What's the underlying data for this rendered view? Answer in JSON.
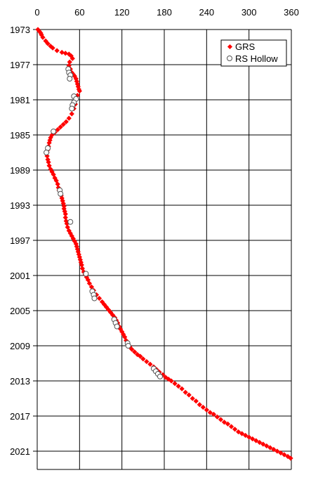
{
  "chart_data": {
    "type": "scatter",
    "title": "",
    "xlabel": "",
    "ylabel": "",
    "xlim": [
      0,
      360
    ],
    "ylim": [
      1973,
      2022
    ],
    "y_inverted": true,
    "x_axis_position": "top",
    "x_ticks": [
      0,
      60,
      120,
      180,
      240,
      300,
      360
    ],
    "y_ticks": [
      1973,
      1977,
      1981,
      1985,
      1989,
      1993,
      1997,
      2001,
      2005,
      2009,
      2013,
      2017,
      2021
    ],
    "grid": true,
    "legend_position": "top-right",
    "series": [
      {
        "name": "GRS",
        "color": "#ff0000",
        "marker": "filled-diamond",
        "data": [
          [
            1,
            1973.0
          ],
          [
            3,
            1973.2
          ],
          [
            5,
            1973.4
          ],
          [
            6,
            1973.6
          ],
          [
            8,
            1973.9
          ],
          [
            12,
            1974.3
          ],
          [
            15,
            1974.6
          ],
          [
            19,
            1974.9
          ],
          [
            22,
            1975.1
          ],
          [
            28,
            1975.4
          ],
          [
            35,
            1975.6
          ],
          [
            40,
            1975.7
          ],
          [
            45,
            1975.8
          ],
          [
            48,
            1976.0
          ],
          [
            50,
            1976.3
          ],
          [
            46,
            1976.7
          ],
          [
            45,
            1977.1
          ],
          [
            47,
            1977.5
          ],
          [
            49,
            1977.9
          ],
          [
            51,
            1978.1
          ],
          [
            53,
            1978.3
          ],
          [
            55,
            1978.6
          ],
          [
            56,
            1978.9
          ],
          [
            57,
            1979.2
          ],
          [
            58,
            1979.5
          ],
          [
            59,
            1979.8
          ],
          [
            60,
            1980.0
          ],
          [
            57,
            1980.5
          ],
          [
            55,
            1981.0
          ],
          [
            54,
            1981.5
          ],
          [
            52,
            1982.0
          ],
          [
            49,
            1982.6
          ],
          [
            45,
            1983.1
          ],
          [
            41,
            1983.5
          ],
          [
            37,
            1983.8
          ],
          [
            33,
            1984.1
          ],
          [
            29,
            1984.4
          ],
          [
            25,
            1984.7
          ],
          [
            21,
            1985.0
          ],
          [
            19,
            1985.3
          ],
          [
            18,
            1985.6
          ],
          [
            17,
            1985.9
          ],
          [
            16,
            1986.3
          ],
          [
            15,
            1986.7
          ],
          [
            14,
            1987.0
          ],
          [
            14,
            1987.4
          ],
          [
            15,
            1987.8
          ],
          [
            16,
            1988.1
          ],
          [
            17,
            1988.5
          ],
          [
            19,
            1988.9
          ],
          [
            21,
            1989.2
          ],
          [
            23,
            1989.5
          ],
          [
            25,
            1989.9
          ],
          [
            27,
            1990.2
          ],
          [
            29,
            1990.6
          ],
          [
            30,
            1991.0
          ],
          [
            31,
            1991.3
          ],
          [
            33,
            1991.6
          ],
          [
            34,
            1991.9
          ],
          [
            35,
            1992.2
          ],
          [
            36,
            1992.5
          ],
          [
            37,
            1992.8
          ],
          [
            38,
            1993.1
          ],
          [
            38,
            1993.4
          ],
          [
            39,
            1993.7
          ],
          [
            40,
            1994.0
          ],
          [
            40,
            1994.4
          ],
          [
            41,
            1994.8
          ],
          [
            42,
            1995.1
          ],
          [
            43,
            1995.5
          ],
          [
            45,
            1995.9
          ],
          [
            47,
            1996.2
          ],
          [
            49,
            1996.5
          ],
          [
            51,
            1996.8
          ],
          [
            53,
            1997.1
          ],
          [
            55,
            1997.4
          ],
          [
            56,
            1997.7
          ],
          [
            57,
            1998.0
          ],
          [
            58,
            1998.3
          ],
          [
            59,
            1998.6
          ],
          [
            60,
            1998.9
          ],
          [
            61,
            1999.2
          ],
          [
            62,
            1999.5
          ],
          [
            63,
            1999.8
          ],
          [
            64,
            2000.2
          ],
          [
            66,
            2000.6
          ],
          [
            68,
            2000.9
          ],
          [
            70,
            2001.2
          ],
          [
            72,
            2001.5
          ],
          [
            74,
            2001.9
          ],
          [
            77,
            2002.3
          ],
          [
            80,
            2002.7
          ],
          [
            84,
            2003.2
          ],
          [
            88,
            2003.6
          ],
          [
            92,
            2004.0
          ],
          [
            95,
            2004.3
          ],
          [
            98,
            2004.6
          ],
          [
            101,
            2004.9
          ],
          [
            104,
            2005.2
          ],
          [
            107,
            2005.5
          ],
          [
            110,
            2005.8
          ],
          [
            112,
            2006.1
          ],
          [
            114,
            2006.4
          ],
          [
            116,
            2006.8
          ],
          [
            118,
            2007.1
          ],
          [
            120,
            2007.4
          ],
          [
            122,
            2007.7
          ],
          [
            124,
            2008.0
          ],
          [
            126,
            2008.4
          ],
          [
            128,
            2008.8
          ],
          [
            131,
            2009.1
          ],
          [
            134,
            2009.4
          ],
          [
            138,
            2009.7
          ],
          [
            142,
            2010.0
          ],
          [
            146,
            2010.2
          ],
          [
            150,
            2010.5
          ],
          [
            155,
            2010.8
          ],
          [
            160,
            2011.1
          ],
          [
            165,
            2011.4
          ],
          [
            169,
            2011.7
          ],
          [
            173,
            2012.0
          ],
          [
            178,
            2012.3
          ],
          [
            182,
            2012.6
          ],
          [
            186,
            2012.8
          ],
          [
            190,
            2013.0
          ],
          [
            195,
            2013.3
          ],
          [
            200,
            2013.6
          ],
          [
            205,
            2013.9
          ],
          [
            210,
            2014.3
          ],
          [
            215,
            2014.6
          ],
          [
            220,
            2015.0
          ],
          [
            225,
            2015.3
          ],
          [
            230,
            2015.7
          ],
          [
            235,
            2016.0
          ],
          [
            240,
            2016.3
          ],
          [
            245,
            2016.6
          ],
          [
            250,
            2016.8
          ],
          [
            255,
            2017.1
          ],
          [
            260,
            2017.4
          ],
          [
            265,
            2017.7
          ],
          [
            270,
            2017.9
          ],
          [
            275,
            2018.2
          ],
          [
            280,
            2018.5
          ],
          [
            285,
            2018.8
          ],
          [
            290,
            2019.0
          ],
          [
            295,
            2019.2
          ],
          [
            300,
            2019.4
          ],
          [
            305,
            2019.6
          ],
          [
            310,
            2019.8
          ],
          [
            315,
            2020.0
          ],
          [
            320,
            2020.2
          ],
          [
            325,
            2020.4
          ],
          [
            330,
            2020.6
          ],
          [
            335,
            2020.8
          ],
          [
            340,
            2021.0
          ],
          [
            345,
            2021.2
          ],
          [
            350,
            2021.4
          ],
          [
            355,
            2021.6
          ],
          [
            359,
            2021.8
          ]
        ]
      },
      {
        "name": "RS Hollow",
        "color": "#ffffff",
        "marker": "hollow-circle",
        "data": [
          [
            44,
            1977.5
          ],
          [
            45,
            1977.9
          ],
          [
            47,
            1978.2
          ],
          [
            46,
            1978.6
          ],
          [
            52,
            1980.6
          ],
          [
            55,
            1980.9
          ],
          [
            52,
            1981.3
          ],
          [
            50,
            1981.6
          ],
          [
            49,
            1982.0
          ],
          [
            23,
            1984.6
          ],
          [
            15,
            1986.5
          ],
          [
            13,
            1987.0
          ],
          [
            32,
            1991.3
          ],
          [
            33,
            1991.7
          ],
          [
            47,
            1994.9
          ],
          [
            69,
            2000.8
          ],
          [
            78,
            2002.8
          ],
          [
            80,
            2003.2
          ],
          [
            81,
            2003.6
          ],
          [
            109,
            2006.0
          ],
          [
            111,
            2006.4
          ],
          [
            113,
            2006.8
          ],
          [
            128,
            2008.7
          ],
          [
            129,
            2009.0
          ],
          [
            165,
            2011.6
          ],
          [
            168,
            2011.9
          ],
          [
            171,
            2012.2
          ],
          [
            174,
            2012.5
          ]
        ]
      }
    ]
  }
}
